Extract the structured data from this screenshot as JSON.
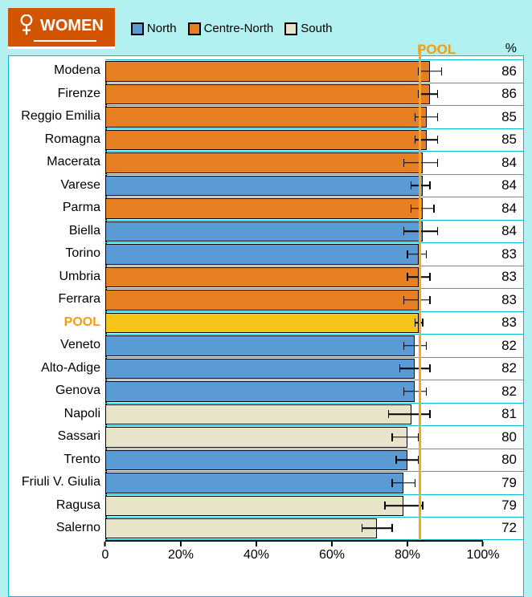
{
  "title": "WOMEN",
  "legend": [
    {
      "label": "North",
      "color": "#5b9bd5"
    },
    {
      "label": "Centre-North",
      "color": "#e67e22"
    },
    {
      "label": "South",
      "color": "#e8e4c9"
    }
  ],
  "colors": {
    "north": "#5b9bd5",
    "centre_north": "#e67e22",
    "south": "#e8e4c9",
    "pool_bar": "#f5c518",
    "pool_line": "#f5a623",
    "pool_text": "#f39c12",
    "grid": "#00bcd4",
    "background": "#b3f0f0",
    "panel": "#ffffff"
  },
  "chart": {
    "type": "horizontal_bar",
    "xlim": [
      0,
      100
    ],
    "xticks": [
      {
        "pos": 0,
        "label": "0"
      },
      {
        "pos": 20,
        "label": "20%"
      },
      {
        "pos": 40,
        "label": "40%"
      },
      {
        "pos": 60,
        "label": "60%"
      },
      {
        "pos": 80,
        "label": "80%"
      },
      {
        "pos": 100,
        "label": "100%"
      }
    ],
    "pct_header": "%",
    "pool_header": "POOL",
    "pool_value": 83,
    "bar_border": "#000000",
    "error_bar_color": "#000000",
    "label_fontsize": 16,
    "value_fontsize": 17
  },
  "rows": [
    {
      "label": "Modena",
      "value": 86,
      "err_lo": 3,
      "err_hi": 3,
      "region": "centre_north"
    },
    {
      "label": "Firenze",
      "value": 86,
      "err_lo": 3,
      "err_hi": 2,
      "region": "centre_north"
    },
    {
      "label": "Reggio Emilia",
      "value": 85,
      "err_lo": 3,
      "err_hi": 3,
      "region": "centre_north"
    },
    {
      "label": "Romagna",
      "value": 85,
      "err_lo": 3,
      "err_hi": 3,
      "region": "centre_north"
    },
    {
      "label": "Macerata",
      "value": 84,
      "err_lo": 5,
      "err_hi": 4,
      "region": "centre_north"
    },
    {
      "label": "Varese",
      "value": 84,
      "err_lo": 3,
      "err_hi": 2,
      "region": "north"
    },
    {
      "label": "Parma",
      "value": 84,
      "err_lo": 3,
      "err_hi": 3,
      "region": "centre_north"
    },
    {
      "label": "Biella",
      "value": 84,
      "err_lo": 5,
      "err_hi": 4,
      "region": "north"
    },
    {
      "label": "Torino",
      "value": 83,
      "err_lo": 3,
      "err_hi": 2,
      "region": "north"
    },
    {
      "label": "Umbria",
      "value": 83,
      "err_lo": 3,
      "err_hi": 3,
      "region": "centre_north"
    },
    {
      "label": "Ferrara",
      "value": 83,
      "err_lo": 4,
      "err_hi": 3,
      "region": "centre_north"
    },
    {
      "label": "POOL",
      "value": 83,
      "err_lo": 1,
      "err_hi": 1,
      "region": "pool"
    },
    {
      "label": "Veneto",
      "value": 82,
      "err_lo": 3,
      "err_hi": 3,
      "region": "north"
    },
    {
      "label": "Alto-Adige",
      "value": 82,
      "err_lo": 4,
      "err_hi": 4,
      "region": "north"
    },
    {
      "label": "Genova",
      "value": 82,
      "err_lo": 3,
      "err_hi": 3,
      "region": "north"
    },
    {
      "label": "Napoli",
      "value": 81,
      "err_lo": 6,
      "err_hi": 5,
      "region": "south"
    },
    {
      "label": "Sassari",
      "value": 80,
      "err_lo": 4,
      "err_hi": 3,
      "region": "south"
    },
    {
      "label": "Trento",
      "value": 80,
      "err_lo": 3,
      "err_hi": 3,
      "region": "north"
    },
    {
      "label": "Friuli V. Giulia",
      "value": 79,
      "err_lo": 3,
      "err_hi": 3,
      "region": "north"
    },
    {
      "label": "Ragusa",
      "value": 79,
      "err_lo": 5,
      "err_hi": 5,
      "region": "south"
    },
    {
      "label": "Salerno",
      "value": 72,
      "err_lo": 4,
      "err_hi": 4,
      "region": "south"
    }
  ]
}
